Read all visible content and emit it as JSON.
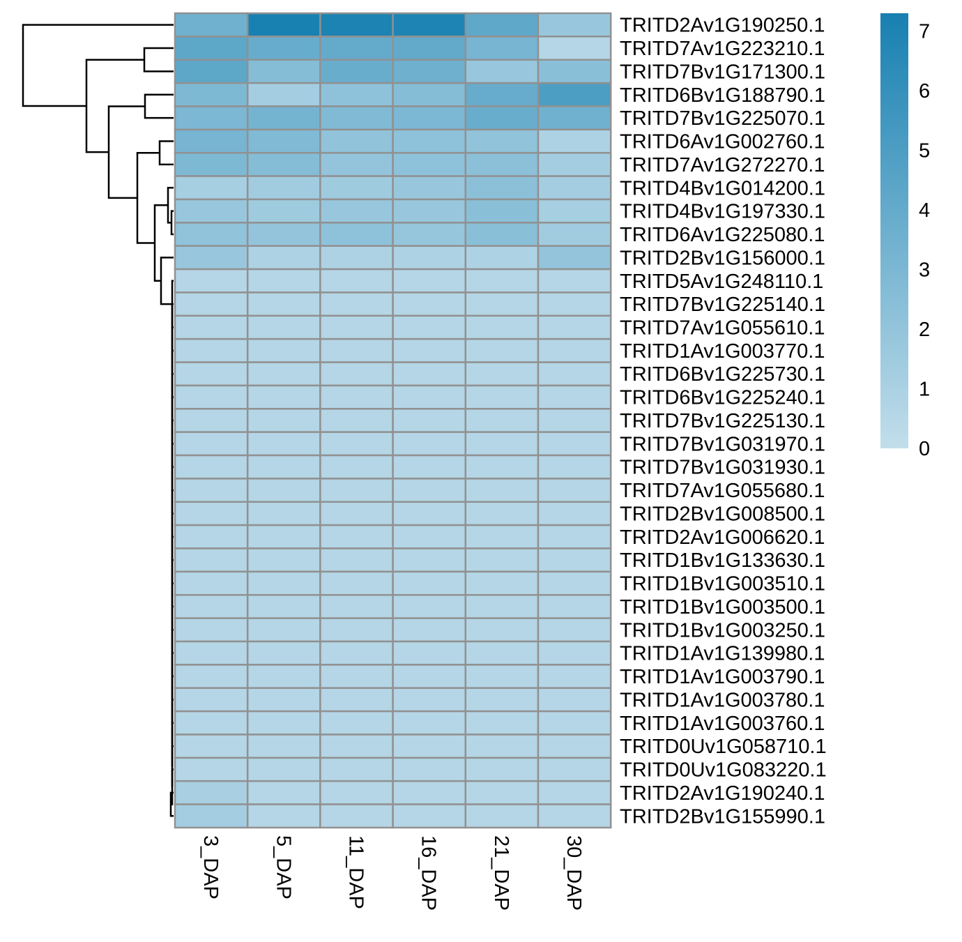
{
  "chart_data": {
    "type": "heatmap",
    "title": "",
    "columns": [
      "3_DAP",
      "5_DAP",
      "11_DAP",
      "16_DAP",
      "21_DAP",
      "30_DAP"
    ],
    "rows": [
      "TRITD2Av1G190250.1",
      "TRITD7Av1G223210.1",
      "TRITD7Bv1G171300.1",
      "TRITD6Bv1G188790.1",
      "TRITD7Bv1G225070.1",
      "TRITD6Av1G002760.1",
      "TRITD7Av1G272270.1",
      "TRITD4Bv1G014200.1",
      "TRITD4Bv1G197330.1",
      "TRITD6Av1G225080.1",
      "TRITD2Bv1G156000.1",
      "TRITD5Av1G248110.1",
      "TRITD7Bv1G225140.1",
      "TRITD7Av1G055610.1",
      "TRITD1Av1G003770.1",
      "TRITD6Bv1G225730.1",
      "TRITD6Bv1G225240.1",
      "TRITD7Bv1G225130.1",
      "TRITD7Bv1G031970.1",
      "TRITD7Bv1G031930.1",
      "TRITD7Av1G055680.1",
      "TRITD2Bv1G008500.1",
      "TRITD2Av1G006620.1",
      "TRITD1Bv1G133630.1",
      "TRITD1Bv1G003510.1",
      "TRITD1Bv1G003500.1",
      "TRITD1Bv1G003250.1",
      "TRITD1Av1G139980.1",
      "TRITD1Av1G003790.1",
      "TRITD1Av1G003780.1",
      "TRITD1Av1G003760.1",
      "TRITD0Uv1G058710.1",
      "TRITD0Uv1G083220.1",
      "TRITD2Av1G190240.1",
      "TRITD2Bv1G155990.1"
    ],
    "values": [
      [
        3.5,
        7.2,
        7.1,
        7.0,
        4.2,
        1.8
      ],
      [
        4.3,
        3.9,
        4.0,
        4.1,
        3.2,
        0.6
      ],
      [
        4.3,
        2.6,
        3.8,
        3.6,
        1.8,
        2.4
      ],
      [
        2.9,
        1.3,
        2.2,
        2.6,
        3.9,
        5.0
      ],
      [
        3.0,
        3.3,
        2.8,
        3.0,
        3.8,
        3.5
      ],
      [
        3.2,
        2.8,
        2.1,
        2.2,
        2.1,
        0.9
      ],
      [
        2.9,
        2.6,
        2.0,
        2.2,
        2.3,
        1.3
      ],
      [
        1.2,
        1.4,
        1.5,
        1.8,
        2.3,
        1.3
      ],
      [
        1.8,
        1.5,
        1.8,
        1.8,
        2.4,
        1.2
      ],
      [
        2.1,
        2.0,
        2.2,
        1.9,
        2.4,
        1.4
      ],
      [
        1.8,
        0.9,
        0.9,
        0.9,
        0.9,
        2.0
      ],
      [
        0.6,
        0.6,
        0.6,
        0.6,
        0.6,
        0.6
      ],
      [
        0.6,
        0.6,
        0.6,
        0.6,
        0.6,
        0.6
      ],
      [
        0.6,
        0.6,
        0.6,
        0.6,
        0.6,
        0.6
      ],
      [
        0.6,
        0.6,
        0.6,
        0.6,
        0.6,
        0.6
      ],
      [
        0.6,
        0.6,
        0.6,
        0.6,
        0.6,
        0.6
      ],
      [
        0.6,
        0.6,
        0.6,
        0.6,
        0.6,
        0.6
      ],
      [
        0.6,
        0.6,
        0.6,
        0.6,
        0.6,
        0.6
      ],
      [
        0.6,
        0.6,
        0.6,
        0.6,
        0.6,
        0.6
      ],
      [
        0.6,
        0.6,
        0.6,
        0.6,
        0.6,
        0.6
      ],
      [
        0.6,
        0.6,
        0.6,
        0.6,
        0.6,
        0.6
      ],
      [
        0.6,
        0.6,
        0.6,
        0.6,
        0.6,
        0.6
      ],
      [
        0.6,
        0.6,
        0.6,
        0.6,
        0.6,
        0.6
      ],
      [
        0.6,
        0.6,
        0.6,
        0.6,
        0.6,
        0.6
      ],
      [
        0.6,
        0.6,
        0.6,
        0.6,
        0.6,
        0.6
      ],
      [
        0.6,
        0.6,
        0.6,
        0.6,
        0.6,
        0.6
      ],
      [
        0.6,
        0.6,
        0.6,
        0.6,
        0.6,
        0.6
      ],
      [
        0.6,
        0.6,
        0.6,
        0.6,
        0.6,
        0.6
      ],
      [
        0.6,
        0.6,
        0.6,
        0.6,
        0.6,
        0.6
      ],
      [
        0.6,
        0.6,
        0.6,
        0.6,
        0.6,
        0.6
      ],
      [
        0.6,
        0.6,
        0.6,
        0.6,
        0.6,
        0.6
      ],
      [
        0.6,
        0.6,
        0.6,
        0.6,
        0.6,
        0.6
      ],
      [
        0.6,
        0.6,
        0.6,
        0.6,
        0.6,
        0.6
      ],
      [
        1.1,
        0.6,
        0.6,
        0.6,
        0.6,
        0.6
      ],
      [
        1.3,
        0.6,
        0.6,
        0.6,
        0.6,
        0.6
      ]
    ],
    "color_scale": {
      "min": 0,
      "max": 7.3,
      "low_color": "#c2deeb",
      "high_color": "#1780b1"
    },
    "legend": {
      "ticks": [
        0,
        1,
        2,
        3,
        4,
        5,
        6,
        7
      ],
      "placement": "top-right"
    },
    "row_dendrogram": true,
    "cell_border_color": "#919191"
  }
}
